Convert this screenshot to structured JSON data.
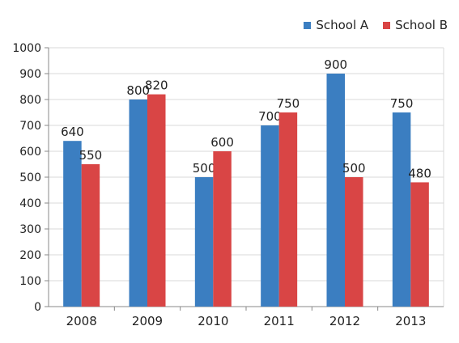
{
  "chart_data": {
    "type": "bar",
    "categories": [
      "2008",
      "2009",
      "2010",
      "2011",
      "2012",
      "2013"
    ],
    "series": [
      {
        "name": "School A",
        "color": "#3b7ec1",
        "values": [
          640,
          800,
          500,
          700,
          900,
          750
        ]
      },
      {
        "name": "School B",
        "color": "#d94545",
        "values": [
          550,
          820,
          600,
          750,
          500,
          480
        ]
      }
    ],
    "ylim": [
      0,
      1000
    ],
    "yticks": [
      0,
      100,
      200,
      300,
      400,
      500,
      600,
      700,
      800,
      900,
      1000
    ],
    "grid": true,
    "legend_position": "top-right",
    "title": "",
    "xlabel": "",
    "ylabel": ""
  }
}
